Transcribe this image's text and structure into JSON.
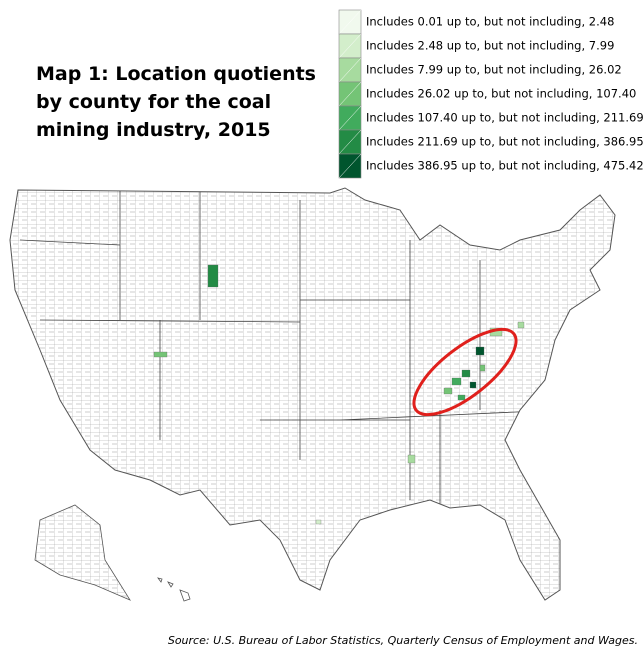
{
  "title": [
    "Map 1: Location quotients",
    "by county for the coal",
    "mining industry, 2015"
  ],
  "legend": [
    {
      "label": "Includes 0.01 up to, but not including, 2.48",
      "color": "#f1f9ee"
    },
    {
      "label": "Includes 2.48 up to, but not including, 7.99",
      "color": "#d3eecb"
    },
    {
      "label": "Includes 7.99 up to, but not including, 26.02",
      "color": "#a7db9f"
    },
    {
      "label": "Includes 26.02 up to, but not including, 107.40",
      "color": "#74c476"
    },
    {
      "label": "Includes 107.40 up to, but not including, 211.69",
      "color": "#41ab5d"
    },
    {
      "label": "Includes 211.69 up to, but not including, 386.95",
      "color": "#238b45"
    },
    {
      "label": "Includes 386.95 up to, but not including, 475.42",
      "color": "#00552e"
    }
  ],
  "source": "Source: U.S. Bureau of Labor Statistics, Quarterly Census of Employment and Wages."
}
